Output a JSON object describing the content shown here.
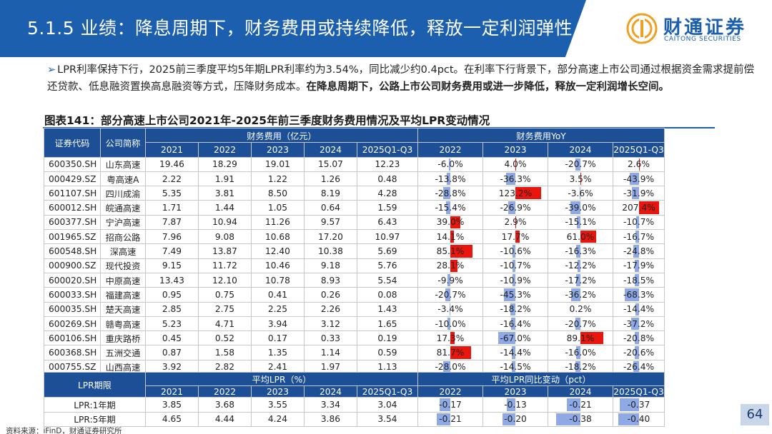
{
  "header": {
    "title": "5.1.5 业绩：降息周期下，财务费用或持续降低，释放一定利润弹性",
    "logo_cn": "财通证券",
    "logo_en": "CAITONG SECURITIES"
  },
  "bullet": {
    "marker": "➢",
    "text_normal": "LPR利率保持下行，2025前三季度平均5年期LPR利率约为3.54%，同比减少约0.4pct。在利率下行背景下，部分高速上市公司通过根据资金需求提前偿还贷款、低息融资置换高息融资等方式，压降财务成本。",
    "text_bold": "在降息周期下，公路上市公司财务费用或进一步降低，释放一定利润增长空间。"
  },
  "figure_title": "图表141：部分高速上市公司2021年-2025年前三季度财务费用情况及平均LPR变动情况",
  "main_table": {
    "col_code": "证券代码",
    "col_name": "公司简称",
    "group_expense": "财务费用（亿元）",
    "group_yoy": "财务费用YoY",
    "expense_years": [
      "2021",
      "2022",
      "2023",
      "2024",
      "2025Q1-Q3"
    ],
    "yoy_years": [
      "2022",
      "2023",
      "2024",
      "2025Q1-Q3"
    ],
    "rows": [
      {
        "code": "600350.SH",
        "name": "山东高速",
        "exp": [
          "19.46",
          "18.29",
          "19.01",
          "15.07",
          "12.23"
        ],
        "yoy": [
          "-6.0%",
          "4.0%",
          "-20.7%",
          "2.6%"
        ],
        "yoy_val": [
          -6.0,
          4.0,
          -20.7,
          2.6
        ]
      },
      {
        "code": "000429.SZ",
        "name": "粤高速A",
        "exp": [
          "2.22",
          "1.91",
          "1.22",
          "1.26",
          "0.48"
        ],
        "yoy": [
          "-13.8%",
          "-36.3%",
          "3.5%",
          "-43.9%"
        ],
        "yoy_val": [
          -13.8,
          -36.3,
          3.5,
          -43.9
        ]
      },
      {
        "code": "601107.SH",
        "name": "四川成渝",
        "exp": [
          "5.35",
          "3.81",
          "8.50",
          "8.19",
          "4.28"
        ],
        "yoy": [
          "-28.8%",
          "123.2%",
          "-3.6%",
          "-31.9%"
        ],
        "yoy_val": [
          -28.8,
          123.2,
          -3.6,
          -31.9
        ]
      },
      {
        "code": "600012.SH",
        "name": "皖通高速",
        "exp": [
          "1.71",
          "1.44",
          "1.05",
          "0.64",
          "1.59"
        ],
        "yoy": [
          "-15.4%",
          "-26.9%",
          "-39.0%",
          "207.4%"
        ],
        "yoy_val": [
          -15.4,
          -26.9,
          -39.0,
          207.4
        ]
      },
      {
        "code": "600377.SH",
        "name": "宁沪高速",
        "exp": [
          "7.87",
          "10.94",
          "11.26",
          "9.57",
          "6.43"
        ],
        "yoy": [
          "39.0%",
          "2.9%",
          "-15.1%",
          "-10.7%"
        ],
        "yoy_val": [
          39.0,
          2.9,
          -15.1,
          -10.7
        ]
      },
      {
        "code": "001965.SZ",
        "name": "招商公路",
        "exp": [
          "7.96",
          "9.08",
          "10.68",
          "17.20",
          "10.97"
        ],
        "yoy": [
          "14.1%",
          "17.7%",
          "61.0%",
          "-16.7%"
        ],
        "yoy_val": [
          14.1,
          17.7,
          61.0,
          -16.7
        ]
      },
      {
        "code": "600548.SH",
        "name": "深高速",
        "exp": [
          "7.49",
          "13.87",
          "12.40",
          "10.38",
          "5.69"
        ],
        "yoy": [
          "85.1%",
          "-10.6%",
          "-16.3%",
          "-24.8%"
        ],
        "yoy_val": [
          85.1,
          -10.6,
          -16.3,
          -24.8
        ]
      },
      {
        "code": "000900.SZ",
        "name": "现代投资",
        "exp": [
          "9.15",
          "11.72",
          "10.46",
          "9.18",
          "5.76"
        ],
        "yoy": [
          "28.1%",
          "-10.7%",
          "-12.2%",
          "-17.9%"
        ],
        "yoy_val": [
          28.1,
          -10.7,
          -12.2,
          -17.9
        ]
      },
      {
        "code": "600020.SH",
        "name": "中原高速",
        "exp": [
          "13.43",
          "12.10",
          "10.78",
          "8.93",
          "5.54"
        ],
        "yoy": [
          "-9.9%",
          "-10.9%",
          "-17.2%",
          "-18.5%"
        ],
        "yoy_val": [
          -9.9,
          -10.9,
          -17.2,
          -18.5
        ]
      },
      {
        "code": "600033.SH",
        "name": "福建高速",
        "exp": [
          "0.95",
          "0.75",
          "0.41",
          "0.26",
          "0.08"
        ],
        "yoy": [
          "-20.7%",
          "-45.3%",
          "-36.2%",
          "-68.3%"
        ],
        "yoy_val": [
          -20.7,
          -45.3,
          -36.2,
          -68.3
        ]
      },
      {
        "code": "600035.SH",
        "name": "楚天高速",
        "exp": [
          "2.85",
          "2.75",
          "2.25",
          "2.26",
          "1.43"
        ],
        "yoy": [
          "-3.4%",
          "-18.2%",
          "0.2%",
          "-14.4%"
        ],
        "yoy_val": [
          -3.4,
          -18.2,
          0.2,
          -14.4
        ]
      },
      {
        "code": "600269.SH",
        "name": "赣粤高速",
        "exp": [
          "5.23",
          "4.71",
          "3.94",
          "3.12",
          "1.65"
        ],
        "yoy": [
          "-10.0%",
          "-16.4%",
          "-20.7%",
          "-37.2%"
        ],
        "yoy_val": [
          -10.0,
          -16.4,
          -20.7,
          -37.2
        ]
      },
      {
        "code": "600106.SH",
        "name": "重庆路桥",
        "exp": [
          "0.45",
          "0.52",
          "0.17",
          "0.33",
          "0.19"
        ],
        "yoy": [
          "17.3%",
          "-67.0%",
          "89.1%",
          "-20.8%"
        ],
        "yoy_val": [
          17.3,
          -67.0,
          89.1,
          -20.8
        ]
      },
      {
        "code": "600368.SH",
        "name": "五洲交通",
        "exp": [
          "0.87",
          "1.58",
          "1.35",
          "1.14",
          "0.59"
        ],
        "yoy": [
          "81.7%",
          "-14.4%",
          "-16.0%",
          "-20.6%"
        ],
        "yoy_val": [
          81.7,
          -14.4,
          -16.0,
          -20.6
        ]
      },
      {
        "code": "000755.SZ",
        "name": "山西高速",
        "exp": [
          "3.92",
          "2.82",
          "2.41",
          "1.97",
          "1.13"
        ],
        "yoy": [
          "-28.0%",
          "-14.5%",
          "-18.2%",
          "-26.4%"
        ],
        "yoy_val": [
          -28.0,
          -14.5,
          -18.2,
          -26.4
        ]
      }
    ]
  },
  "lpr_table": {
    "col_term": "LPR期限",
    "group_avg": "平均LPR（%）",
    "group_change": "平均LPR同比变动（pct）",
    "avg_years": [
      "2021",
      "2022",
      "2023",
      "2024",
      "2025Q1-Q3"
    ],
    "change_years": [
      "2022",
      "2023",
      "2024",
      "2025Q1-Q3"
    ],
    "rows": [
      {
        "term": "LPR:1年期",
        "avg": [
          "3.85",
          "3.68",
          "3.55",
          "3.34",
          "3.04"
        ],
        "chg": [
          "-0.17",
          "-0.13",
          "-0.21",
          "-0.37"
        ],
        "chg_val": [
          -0.17,
          -0.13,
          -0.21,
          -0.37
        ]
      },
      {
        "term": "LPR:5年期",
        "avg": [
          "4.65",
          "4.44",
          "4.24",
          "3.86",
          "3.54"
        ],
        "chg": [
          "-0.21",
          "-0.20",
          "-0.38",
          "-0.40"
        ],
        "chg_val": [
          -0.21,
          -0.2,
          -0.38,
          -0.4
        ]
      }
    ]
  },
  "source": "资料来源：iFinD，财通证券研究所",
  "page_number": "64",
  "colors": {
    "header_blue": "#1b5fae",
    "table_header": "#1c4f95",
    "bar_negative": "#8ea9e6",
    "bar_positive": "#e8160c"
  }
}
